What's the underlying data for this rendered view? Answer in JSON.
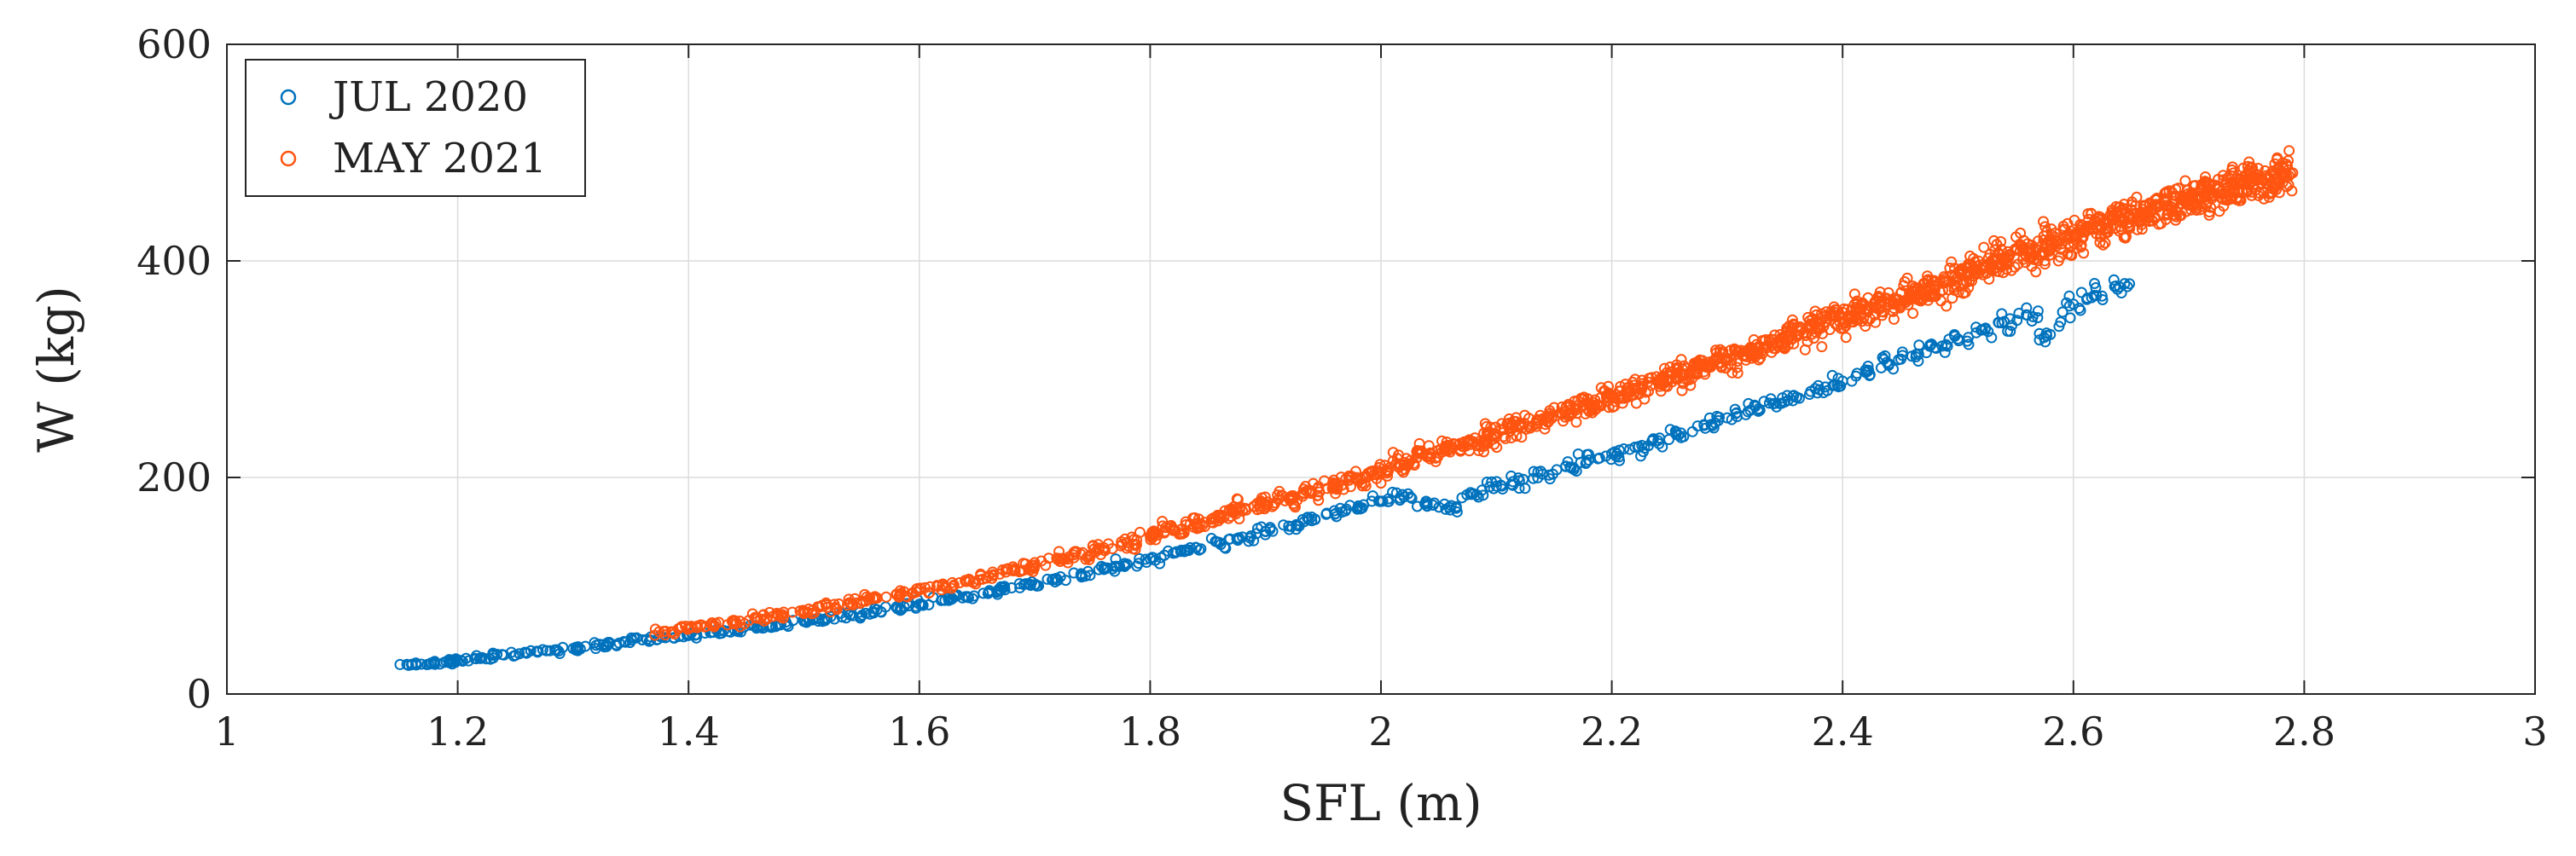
{
  "chart_data": {
    "type": "scatter",
    "title": "",
    "xlabel": "SFL (m)",
    "ylabel": "W (kg)",
    "xlim": [
      1,
      3
    ],
    "ylim": [
      0,
      600
    ],
    "xticks": [
      1,
      1.2,
      1.4,
      1.6,
      1.8,
      2,
      2.2,
      2.4,
      2.6,
      2.8,
      3
    ],
    "xtick_labels": [
      "1",
      "1.2",
      "1.4",
      "1.6",
      "1.8",
      "2",
      "2.2",
      "2.4",
      "2.6",
      "2.8",
      "3"
    ],
    "yticks": [
      0,
      200,
      400,
      600
    ],
    "ytick_labels": [
      "0",
      "200",
      "400",
      "600"
    ],
    "grid": true,
    "legend_position": "top-left",
    "series": [
      {
        "name": "JUL 2020",
        "color": "#0072BD",
        "marker": "circle-open",
        "x": [
          1.16,
          1.18,
          1.19,
          1.2,
          1.22,
          1.24,
          1.26,
          1.28,
          1.3,
          1.32,
          1.34,
          1.36,
          1.38,
          1.4,
          1.42,
          1.44,
          1.46,
          1.48,
          1.5,
          1.52,
          1.54,
          1.56,
          1.58,
          1.6,
          1.62,
          1.64,
          1.66,
          1.68,
          1.7,
          1.72,
          1.74,
          1.76,
          1.78,
          1.8,
          1.82,
          1.84,
          1.86,
          1.88,
          1.9,
          1.92,
          1.94,
          1.96,
          1.98,
          2.0,
          2.02,
          2.04,
          2.06,
          2.08,
          2.1,
          2.12,
          2.14,
          2.16,
          2.18,
          2.2,
          2.22,
          2.24,
          2.26,
          2.28,
          2.3,
          2.32,
          2.34,
          2.36,
          2.38,
          2.4,
          2.42,
          2.44,
          2.46,
          2.48,
          2.5,
          2.52,
          2.54,
          2.56,
          2.58,
          2.6,
          2.62,
          2.64
        ],
        "y": [
          27,
          28,
          30,
          31,
          33,
          36,
          38,
          40,
          42,
          45,
          47,
          50,
          52,
          54,
          57,
          59,
          62,
          64,
          67,
          70,
          73,
          76,
          80,
          83,
          87,
          90,
          94,
          98,
          101,
          105,
          110,
          115,
          120,
          125,
          130,
          135,
          140,
          145,
          150,
          155,
          160,
          166,
          172,
          178,
          182,
          176,
          170,
          185,
          192,
          197,
          203,
          210,
          216,
          222,
          228,
          234,
          241,
          248,
          255,
          262,
          268,
          274,
          281,
          289,
          297,
          305,
          312,
          320,
          328,
          336,
          344,
          350,
          332,
          360,
          368,
          376
        ]
      },
      {
        "name": "MAY 2021",
        "color": "#FF5511",
        "marker": "circle-open",
        "x": [
          1.38,
          1.4,
          1.42,
          1.44,
          1.46,
          1.48,
          1.5,
          1.52,
          1.54,
          1.56,
          1.58,
          1.6,
          1.62,
          1.64,
          1.66,
          1.68,
          1.7,
          1.72,
          1.74,
          1.76,
          1.78,
          1.8,
          1.82,
          1.84,
          1.86,
          1.88,
          1.9,
          1.92,
          1.94,
          1.96,
          1.98,
          2.0,
          2.02,
          2.04,
          2.06,
          2.08,
          2.1,
          2.12,
          2.14,
          2.16,
          2.18,
          2.2,
          2.22,
          2.24,
          2.26,
          2.28,
          2.3,
          2.32,
          2.34,
          2.36,
          2.38,
          2.4,
          2.42,
          2.44,
          2.46,
          2.48,
          2.5,
          2.52,
          2.54,
          2.56,
          2.58,
          2.6,
          2.62,
          2.64,
          2.66,
          2.68,
          2.7,
          2.72,
          2.74,
          2.76,
          2.78
        ],
        "y": [
          58,
          61,
          64,
          67,
          70,
          73,
          76,
          80,
          84,
          88,
          92,
          96,
          100,
          104,
          109,
          114,
          119,
          124,
          129,
          135,
          140,
          146,
          151,
          157,
          163,
          169,
          175,
          181,
          187,
          193,
          199,
          205,
          212,
          219,
          226,
          233,
          240,
          247,
          254,
          261,
          268,
          275,
          282,
          289,
          296,
          303,
          310,
          317,
          324,
          332,
          339,
          347,
          354,
          362,
          369,
          377,
          385,
          392,
          400,
          408,
          415,
          423,
          430,
          437,
          444,
          451,
          457,
          463,
          469,
          475,
          480
        ]
      }
    ]
  }
}
